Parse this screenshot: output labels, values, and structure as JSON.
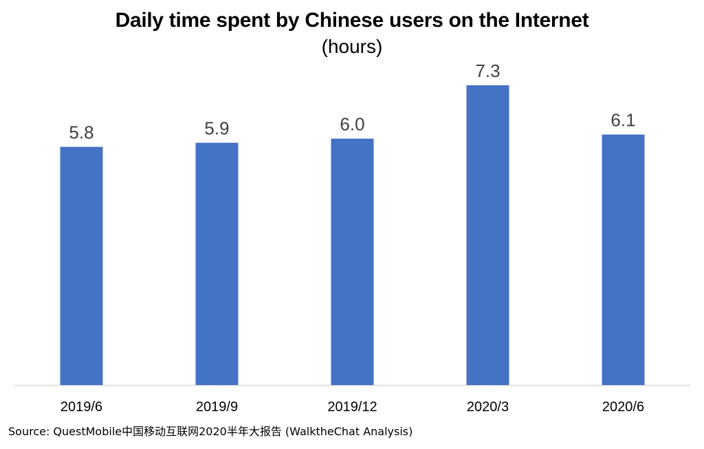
{
  "chart_data": {
    "type": "bar",
    "title": "Daily time spent by Chinese users on the Internet",
    "subtitle": "(hours)",
    "categories": [
      "2019/6",
      "2019/9",
      "2019/12",
      "2020/3",
      "2020/6"
    ],
    "values": [
      5.8,
      5.9,
      6.0,
      7.3,
      6.1
    ],
    "value_labels": [
      "5.8",
      "5.9",
      "6.0",
      "7.3",
      "6.1"
    ],
    "xlabel": "",
    "ylabel": "",
    "ylim": [
      0,
      7.3
    ],
    "grid": false,
    "legend": "none",
    "bar_color": "#4472C4",
    "axis_color": "#D9D9D9"
  },
  "source": "Source: QuestMobile中国移动互联网2020半年大报告 (WalktheChat Analysis)"
}
